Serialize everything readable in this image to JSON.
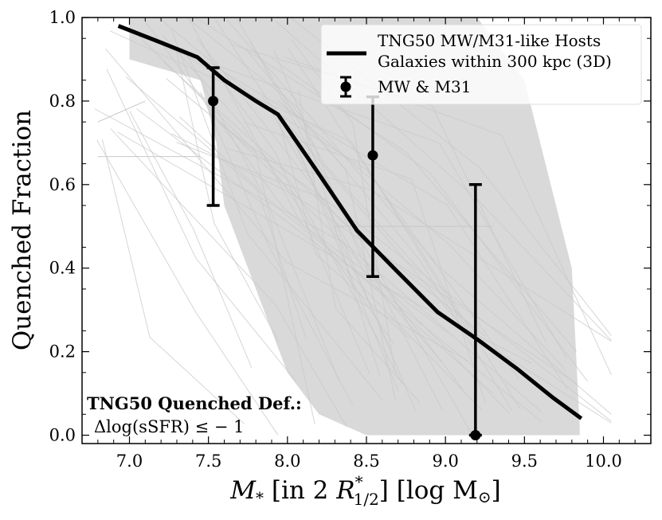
{
  "chart_data": {
    "type": "line",
    "title": "",
    "xlabel": {
      "prefix": "M",
      "sub": "*",
      "mid": " [in 2 ",
      "r": "R",
      "r_sup": "*",
      "r_sub": "1/2",
      "suffix": "] [log M",
      "sun_sub": "⊙",
      "end": "]"
    },
    "ylabel": "Quenched Fraction",
    "xlim": [
      6.7,
      10.3
    ],
    "ylim": [
      -0.02,
      1.0
    ],
    "xticks": [
      7.0,
      7.5,
      8.0,
      8.5,
      9.0,
      9.5,
      10.0
    ],
    "xtick_labels": [
      "7.0",
      "7.5",
      "8.0",
      "8.5",
      "9.0",
      "9.5",
      "10.0"
    ],
    "yticks": [
      0.0,
      0.2,
      0.4,
      0.6,
      0.8,
      1.0
    ],
    "ytick_labels": [
      "0.0",
      "0.2",
      "0.4",
      "0.6",
      "0.8",
      "1.0"
    ],
    "band": {
      "name": "host scatter",
      "color": "#d9d9d9",
      "x": [
        7.0,
        7.45,
        7.55,
        7.6,
        7.8,
        8.0,
        8.2,
        8.5,
        8.8,
        9.0,
        9.2,
        9.5,
        9.8,
        9.85
      ],
      "upper": [
        1.0,
        1.0,
        1.0,
        1.0,
        1.0,
        1.0,
        1.0,
        1.0,
        1.0,
        1.0,
        1.0,
        0.85,
        0.4,
        0.02
      ],
      "lower": [
        0.9,
        0.85,
        0.7,
        0.55,
        0.35,
        0.15,
        0.05,
        0.0,
        0.0,
        0.0,
        0.0,
        0.0,
        0.0,
        0.0
      ]
    },
    "series": [
      {
        "name": "TNG50 MW/M31-like Hosts\nGalaxies within 300 kpc (3D)",
        "legend_line1": "TNG50 MW/M31-like Hosts",
        "legend_line2": "Galaxies within 300 kpc (3D)",
        "color": "#000000",
        "x": [
          6.93,
          7.2,
          7.43,
          7.6,
          7.8,
          7.94,
          8.2,
          8.44,
          8.7,
          8.95,
          9.2,
          9.45,
          9.68,
          9.86
        ],
        "y": [
          0.98,
          0.94,
          0.905,
          0.85,
          0.8,
          0.768,
          0.625,
          0.49,
          0.39,
          0.295,
          0.23,
          0.16,
          0.09,
          0.04
        ]
      }
    ],
    "errorbar_series": {
      "name": "MW & M31",
      "color": "#000000",
      "points": [
        {
          "x": 7.53,
          "y": 0.8,
          "ylow": 0.55,
          "yhigh": 0.88
        },
        {
          "x": 8.54,
          "y": 0.67,
          "ylow": 0.38,
          "yhigh": 0.81
        },
        {
          "x": 9.19,
          "y": 0.0,
          "ylow": 0.0,
          "yhigh": 0.6
        }
      ]
    },
    "annotation": {
      "title": "TNG50 Quenched Def.:",
      "text": "Δlog(sSFR) ≤ − 1"
    },
    "legend_position": "upper-right"
  }
}
